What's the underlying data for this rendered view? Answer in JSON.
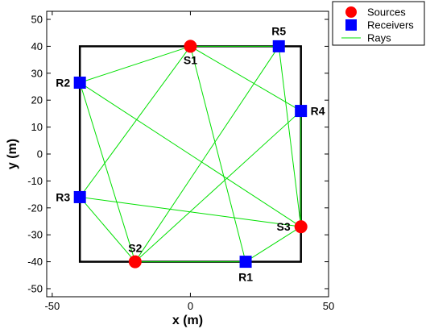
{
  "chart_data": {
    "type": "scatter",
    "xlabel": "x (m)",
    "ylabel": "y (m)",
    "xlim": [
      -52,
      50
    ],
    "ylim": [
      -53,
      53
    ],
    "xticks": [
      -50,
      0,
      50
    ],
    "yticks": [
      50,
      40,
      30,
      20,
      10,
      0,
      -10,
      -20,
      -30,
      -40,
      -50
    ],
    "grid": false,
    "legend_position": "outside top-right",
    "domain_box": {
      "x": [
        -40,
        40
      ],
      "y": [
        -40,
        40
      ]
    },
    "sources": [
      {
        "label": "S1",
        "x": 0,
        "y": 40
      },
      {
        "label": "S2",
        "x": -20,
        "y": -40
      },
      {
        "label": "S3",
        "x": 40,
        "y": -27
      }
    ],
    "receivers": [
      {
        "label": "R1",
        "x": 20,
        "y": -40
      },
      {
        "label": "R2",
        "x": -40,
        "y": 26.5
      },
      {
        "label": "R3",
        "x": -40,
        "y": -16
      },
      {
        "label": "R4",
        "x": 40,
        "y": 16
      },
      {
        "label": "R5",
        "x": 32,
        "y": 40
      }
    ],
    "rays": [
      [
        "S1",
        "R1"
      ],
      [
        "S1",
        "R2"
      ],
      [
        "S1",
        "R3"
      ],
      [
        "S1",
        "R4"
      ],
      [
        "S1",
        "R5"
      ],
      [
        "S2",
        "R1"
      ],
      [
        "S2",
        "R2"
      ],
      [
        "S2",
        "R3"
      ],
      [
        "S2",
        "R4"
      ],
      [
        "S2",
        "R5"
      ],
      [
        "S3",
        "R1"
      ],
      [
        "S3",
        "R2"
      ],
      [
        "S3",
        "R3"
      ],
      [
        "S3",
        "R4"
      ],
      [
        "S3",
        "R5"
      ]
    ],
    "legend": [
      {
        "name": "Sources",
        "marker": "circle"
      },
      {
        "name": "Receivers",
        "marker": "square"
      },
      {
        "name": "Rays",
        "marker": "line"
      }
    ],
    "colors": {
      "source": "#ff0000",
      "receiver": "#0000ff",
      "ray": "#00e000",
      "box": "#000000"
    }
  }
}
